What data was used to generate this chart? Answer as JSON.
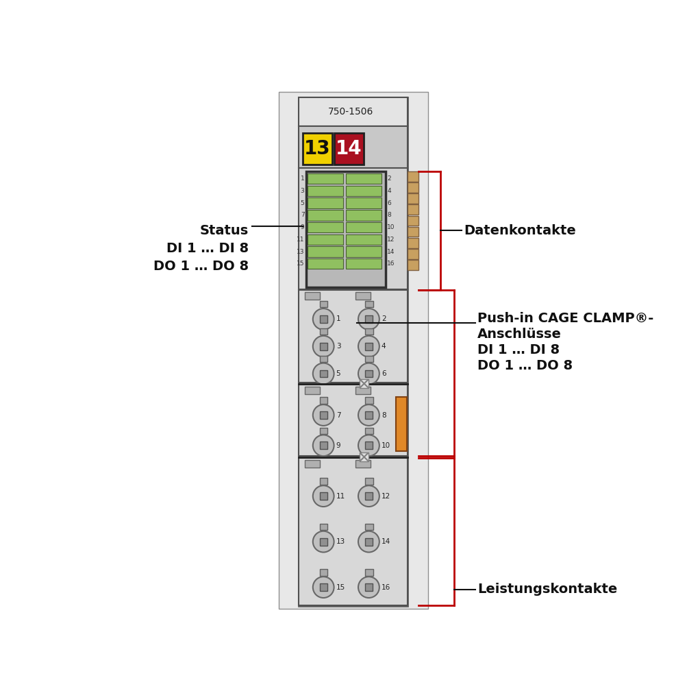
{
  "bg_color": "#ffffff",
  "module_light": "#d8d8d8",
  "module_mid": "#c0c0c0",
  "module_dark": "#a0a0a0",
  "module_border": "#404040",
  "connector_tan": "#c8a060",
  "connector_orange": "#e08828",
  "led_green": "#90c060",
  "led_dark_border": "#486030",
  "title_number": "750-1506",
  "badge13_color": "#f0d000",
  "badge14_color": "#aa1020",
  "red_line": "#bb0000",
  "black_line": "#101010",
  "label_status": "Status",
  "label_di": "DI 1 … DI 8",
  "label_do": "DO 1 … DO 8",
  "label_datenkontakte": "Datenkontakte",
  "label_push_in": "Push-in CAGE CLAMP®-",
  "label_anschlusse": "Anschlüsse",
  "label_di2": "DI 1 … DI 8",
  "label_do2": "DO 1 … DO 8",
  "label_leistungskontakte": "Leistungskontakte"
}
